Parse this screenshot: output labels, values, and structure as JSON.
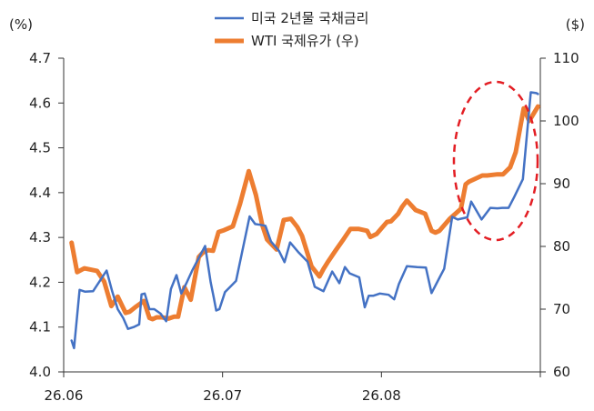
{
  "chart_data": {
    "type": "line",
    "left_axis": {
      "unit": "(%)",
      "min": 4.0,
      "max": 4.7,
      "ticks": [
        "4.0",
        "4.1",
        "4.2",
        "4.3",
        "4.4",
        "4.5",
        "4.6",
        "4.7"
      ]
    },
    "right_axis": {
      "unit": "($)",
      "min": 60,
      "max": 110,
      "ticks": [
        "60",
        "70",
        "80",
        "90",
        "100",
        "110"
      ]
    },
    "x_ticks": [
      "26.06",
      "26.07",
      "26.08"
    ],
    "x_start": "26.06",
    "x_end": "26.09",
    "legend_position": "top-center",
    "annotation": "dashed-red-ellipse",
    "series": [
      {
        "name": "미국 2년물 국채금리",
        "axis": "left",
        "color": "#4472C4",
        "x": [
          1,
          1.3,
          2,
          2.7,
          3.7,
          5.4,
          6.1,
          6.8,
          7.5,
          8.1,
          8.8,
          9.5,
          9.8,
          10.2,
          10.8,
          11.4,
          12.2,
          12.9,
          13.5,
          14.2,
          14.8,
          15.5,
          16.2,
          17.8,
          18.5,
          18.9,
          19.2,
          19.6,
          20.3,
          21.7,
          22.4,
          23.4,
          24.1,
          24.8,
          25.4,
          26.1,
          27.1,
          27.8,
          28.5,
          29.6,
          30.7,
          31.6,
          32.7,
          33.8,
          34.7,
          35.4,
          36,
          37.2,
          37.9,
          38.4,
          39,
          39.8,
          40.9,
          41.6,
          42.2,
          43.2,
          44.5,
          45.6,
          46.3,
          47.3,
          47.9,
          48.9,
          49.6,
          50.8,
          51.3,
          52.6,
          53.7,
          54.6,
          55.2,
          56,
          56.7,
          57.8,
          58.8,
          59.5,
          59.7
        ],
        "y": [
          4.07,
          4.053,
          4.183,
          4.179,
          4.18,
          4.226,
          4.18,
          4.14,
          4.12,
          4.096,
          4.1,
          4.106,
          4.173,
          4.175,
          4.14,
          4.14,
          4.13,
          4.113,
          4.185,
          4.216,
          4.175,
          4.2,
          4.227,
          4.281,
          4.2,
          4.165,
          4.137,
          4.14,
          4.178,
          4.203,
          4.262,
          4.347,
          4.33,
          4.328,
          4.326,
          4.291,
          4.27,
          4.245,
          4.289,
          4.266,
          4.246,
          4.19,
          4.18,
          4.224,
          4.198,
          4.234,
          4.22,
          4.211,
          4.144,
          4.17,
          4.17,
          4.175,
          4.172,
          4.162,
          4.196,
          4.236,
          4.234,
          4.233,
          4.176,
          4.21,
          4.23,
          4.346,
          4.34,
          4.345,
          4.38,
          4.34,
          4.366,
          4.365,
          4.366,
          4.366,
          4.39,
          4.43,
          4.624,
          4.622,
          4.62
        ]
      },
      {
        "name": "WTI 국제유가 (우)",
        "axis": "right",
        "color": "#ED7D31",
        "x": [
          1,
          1.7,
          2.6,
          4.2,
          5.1,
          6,
          6.8,
          7.8,
          8.3,
          9,
          10.1,
          10.8,
          11.2,
          11.7,
          12.4,
          13.2,
          13.9,
          14.4,
          15.2,
          16,
          17,
          17.5,
          18.2,
          18.8,
          19.5,
          20.2,
          21.3,
          22.2,
          23.3,
          24.2,
          25,
          25.6,
          26.8,
          27.7,
          28.6,
          29.4,
          30,
          31.2,
          32.2,
          32.7,
          33.2,
          34.2,
          35.2,
          36.1,
          37.1,
          38.2,
          38.6,
          39.4,
          40.7,
          41.2,
          42.1,
          42.6,
          43.2,
          44.3,
          45.5,
          46.3,
          46.8,
          47.3,
          48.6,
          50,
          50.6,
          51,
          52.7,
          53.3,
          54.6,
          55.3,
          56.2,
          56.9,
          57.9,
          58.6,
          59.7
        ],
        "y": [
          80.6,
          75.9,
          76.5,
          76.1,
          74.4,
          70.5,
          72,
          69.4,
          69.6,
          70.3,
          71.3,
          68.6,
          68.4,
          68.7,
          68.7,
          68.5,
          68.8,
          68.8,
          73.5,
          71.5,
          78.3,
          79,
          79.4,
          79.3,
          82.3,
          82.6,
          83.2,
          86.8,
          92,
          88.2,
          83.4,
          81.1,
          79.5,
          84.2,
          84.4,
          83.1,
          81.7,
          76.8,
          75.2,
          76.4,
          77.4,
          79.3,
          81.1,
          82.8,
          82.8,
          82.5,
          81.5,
          82,
          83.9,
          84,
          85.2,
          86.3,
          87.3,
          85.8,
          85.2,
          82.5,
          82.2,
          82.5,
          84.4,
          86,
          89.9,
          90.3,
          91.3,
          91.3,
          91.5,
          91.5,
          92.6,
          95,
          102,
          100,
          102.3
        ]
      }
    ]
  }
}
